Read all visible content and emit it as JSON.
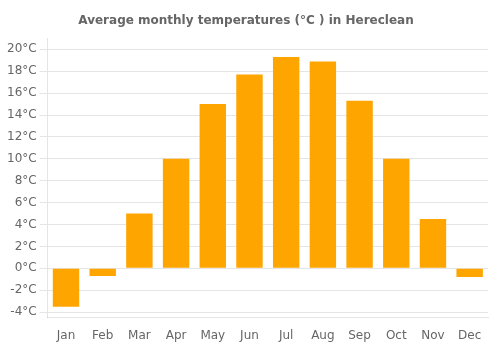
{
  "chart_data": {
    "type": "bar",
    "title": "Average monthly temperatures (°C ) in Hereclean",
    "categories": [
      "Jan",
      "Feb",
      "Mar",
      "Apr",
      "May",
      "Jun",
      "Jul",
      "Aug",
      "Sep",
      "Oct",
      "Nov",
      "Dec"
    ],
    "values": [
      -3.5,
      -0.7,
      5.0,
      10.0,
      15.0,
      17.7,
      19.3,
      18.9,
      15.3,
      10.0,
      4.5,
      -0.8
    ],
    "color": "#FFA500",
    "ylim": [
      -4.5,
      21.0
    ],
    "yticks": [
      {
        "value": -4,
        "label": "-4°C"
      },
      {
        "value": -2,
        "label": "-2°C"
      },
      {
        "value": 0,
        "label": "0°C"
      },
      {
        "value": 2,
        "label": "2°C"
      },
      {
        "value": 4,
        "label": "4°C"
      },
      {
        "value": 6,
        "label": "6°C"
      },
      {
        "value": 8,
        "label": "8°C"
      },
      {
        "value": 10,
        "label": "10°C"
      },
      {
        "value": 12,
        "label": "12°C"
      },
      {
        "value": 14,
        "label": "14°C"
      },
      {
        "value": 16,
        "label": "16°C"
      },
      {
        "value": 18,
        "label": "18°C"
      },
      {
        "value": 20,
        "label": "20°C"
      }
    ],
    "grid": true
  }
}
